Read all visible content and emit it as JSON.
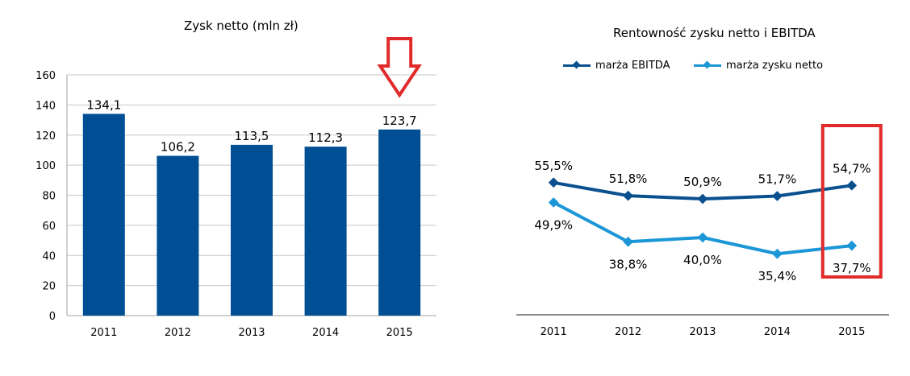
{
  "chart_data": [
    {
      "type": "bar",
      "title": "Zysk netto (mln zł)",
      "categories": [
        "2011",
        "2012",
        "2013",
        "2014",
        "2015"
      ],
      "values": [
        134.1,
        106.2,
        113.5,
        112.3,
        123.7
      ],
      "value_labels": [
        "134,1",
        "106,2",
        "113,5",
        "112,3",
        "123,7"
      ],
      "yticks": [
        "0",
        "20",
        "40",
        "60",
        "80",
        "100",
        "120",
        "140",
        "160"
      ],
      "ylim": [
        0,
        160
      ],
      "grid": true,
      "bar_color": "#004f94",
      "highlight": {
        "category": "2015",
        "marker": "red-down-arrow",
        "color": "#e12b2b"
      }
    },
    {
      "type": "line",
      "title": "Rentowność zysku netto i EBITDA",
      "categories": [
        "2011",
        "2012",
        "2013",
        "2014",
        "2015"
      ],
      "series": [
        {
          "name": "marża EBITDA",
          "values": [
            55.5,
            51.8,
            50.9,
            51.7,
            54.7
          ],
          "labels": [
            "55,5%",
            "51,8%",
            "50,9%",
            "51,7%",
            "54,7%"
          ],
          "color": "#0a508f"
        },
        {
          "name": "marża zysku netto",
          "values": [
            49.9,
            38.8,
            40.0,
            35.4,
            37.7
          ],
          "labels": [
            "49,9%",
            "38,8%",
            "40,0%",
            "35,4%",
            "37,7%"
          ],
          "color": "#1b96d7"
        }
      ],
      "legend": "top",
      "grid": false,
      "highlight": {
        "category": "2015",
        "marker": "red-box",
        "color": "#e12b2b"
      }
    }
  ]
}
